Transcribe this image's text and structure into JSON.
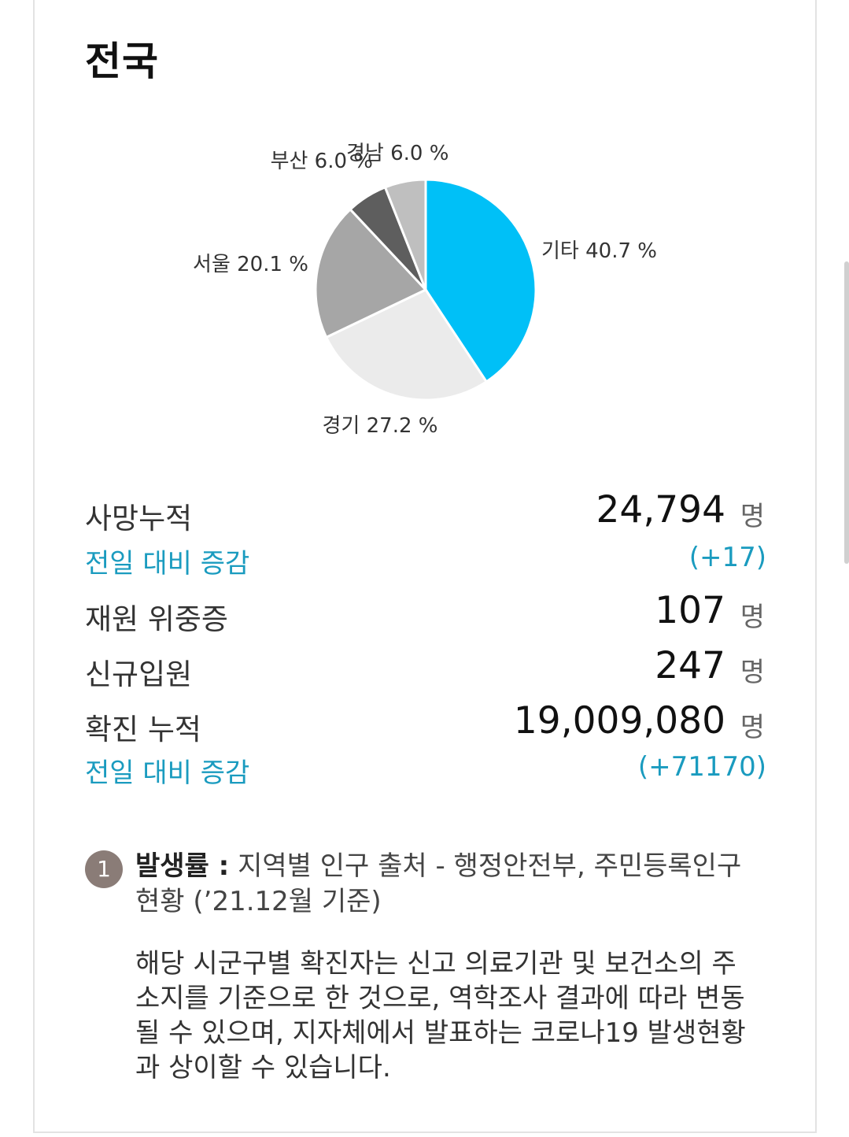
{
  "title": "전국",
  "colors": {
    "accent": "#00c0f7",
    "change_text": "#1a9bbf",
    "badge": "#8a7c77"
  },
  "chart_data": {
    "type": "pie",
    "categories": [
      "기타",
      "경기",
      "서울",
      "부산",
      "경남"
    ],
    "values": [
      40.7,
      27.2,
      20.1,
      6.0,
      6.0
    ],
    "labels": [
      "기타 40.7 %",
      "경기 27.2 %",
      "서울 20.1 %",
      "부산 6.0 %",
      "경남 6.0 %"
    ],
    "colors": [
      "#00c0f7",
      "#ebebeb",
      "#a6a6a6",
      "#5e5e5e",
      "#bfbfbf"
    ]
  },
  "stats": {
    "deaths": {
      "label": "사망누적",
      "value": "24,794",
      "unit": "명"
    },
    "deaths_change": {
      "label": "전일 대비 증감",
      "value": "(+17)"
    },
    "critical": {
      "label": "재원 위중증",
      "value": "107",
      "unit": "명"
    },
    "admitted": {
      "label": "신규입원",
      "value": "247",
      "unit": "명"
    },
    "confirmed": {
      "label": "확진 누적",
      "value": "19,009,080",
      "unit": "명"
    },
    "confirmed_change": {
      "label": "전일 대비 증감",
      "value": "(+71170)"
    }
  },
  "note": {
    "badge": "1",
    "heading": "발생률 :",
    "source": "지역별 인구 출처 - 행정안전부, 주민등록인구현황 (’21.12월 기준)",
    "body": "해당 시군구별 확진자는 신고 의료기관 및 보건소의 주소지를 기준으로 한 것으로, 역학조사 결과에 따라 변동될 수 있으며, 지자체에서 발표하는 코로나19 발생현황과 상이할 수 있습니다."
  }
}
